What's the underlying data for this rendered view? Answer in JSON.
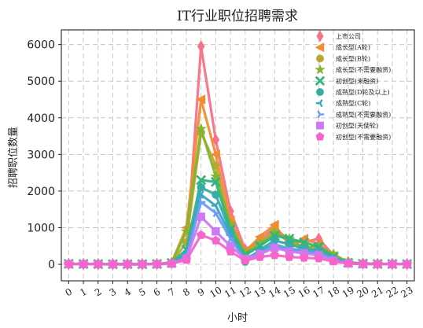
{
  "chart_data": {
    "type": "line",
    "title": "IT行业职位招聘需求",
    "xlabel": "小时",
    "ylabel": "招聘职位数量",
    "x": [
      0,
      1,
      2,
      3,
      4,
      5,
      6,
      7,
      8,
      9,
      10,
      11,
      12,
      13,
      14,
      15,
      16,
      17,
      18,
      19,
      20,
      21,
      22,
      23
    ],
    "ylim": [
      -450,
      6400
    ],
    "yticks": [
      0,
      1000,
      2000,
      3000,
      4000,
      5000,
      6000
    ],
    "grid": true,
    "legend_position": "top-right",
    "series": [
      {
        "name": "上市公司",
        "color": "#f77189",
        "marker": "diamond",
        "values": [
          10,
          8,
          5,
          3,
          3,
          3,
          8,
          40,
          250,
          5950,
          3400,
          1450,
          400,
          650,
          1000,
          650,
          600,
          700,
          250,
          60,
          20,
          10,
          10,
          5
        ]
      },
      {
        "name": "成长型(A轮)",
        "color": "#f28d32",
        "marker": "triangle-left",
        "values": [
          15,
          12,
          8,
          5,
          4,
          4,
          10,
          50,
          1000,
          4500,
          3000,
          1200,
          350,
          750,
          1080,
          520,
          700,
          550,
          230,
          50,
          20,
          15,
          10,
          8
        ]
      },
      {
        "name": "成长型(B轮)",
        "color": "#bba832",
        "marker": "circle",
        "values": [
          12,
          8,
          6,
          4,
          3,
          3,
          8,
          30,
          600,
          3600,
          2700,
          1000,
          320,
          600,
          900,
          600,
          450,
          400,
          200,
          40,
          18,
          12,
          8,
          6
        ]
      },
      {
        "name": "成长型(不需要融资)",
        "color": "#85b431",
        "marker": "star",
        "values": [
          10,
          8,
          5,
          3,
          3,
          3,
          7,
          30,
          900,
          3700,
          2400,
          1100,
          300,
          550,
          850,
          700,
          450,
          500,
          280,
          50,
          18,
          12,
          8,
          6
        ]
      },
      {
        "name": "初创型(未融资)",
        "color": "#33b57d",
        "marker": "x",
        "values": [
          12,
          10,
          6,
          4,
          3,
          3,
          8,
          35,
          400,
          2300,
          2250,
          950,
          250,
          500,
          780,
          700,
          600,
          480,
          200,
          40,
          15,
          10,
          8,
          6
        ]
      },
      {
        "name": "成熟型(D轮及以上)",
        "color": "#36ada4",
        "marker": "circle",
        "values": [
          10,
          6,
          4,
          2,
          2,
          2,
          6,
          25,
          300,
          2100,
          1900,
          900,
          70,
          400,
          650,
          550,
          420,
          380,
          160,
          35,
          12,
          8,
          6,
          4
        ]
      },
      {
        "name": "成熟型(C轮)",
        "color": "#38a9c5",
        "marker": "tri-left",
        "values": [
          10,
          6,
          4,
          2,
          2,
          2,
          6,
          25,
          250,
          1900,
          1600,
          800,
          150,
          350,
          550,
          420,
          380,
          320,
          150,
          30,
          10,
          8,
          6,
          4
        ]
      },
      {
        "name": "成熟型(不需要融资)",
        "color": "#6e9bf4",
        "marker": "tri-right",
        "values": [
          8,
          5,
          3,
          2,
          2,
          2,
          5,
          20,
          200,
          1700,
          1400,
          700,
          120,
          300,
          500,
          380,
          330,
          300,
          140,
          28,
          10,
          6,
          5,
          3
        ]
      },
      {
        "name": "初创型(天使轮)",
        "color": "#cc79f4",
        "marker": "square",
        "values": [
          8,
          5,
          3,
          2,
          2,
          2,
          5,
          20,
          150,
          1300,
          900,
          500,
          150,
          280,
          450,
          350,
          300,
          250,
          100,
          25,
          8,
          5,
          4,
          3
        ]
      },
      {
        "name": "初创型(不需要融资)",
        "color": "#f565cc",
        "marker": "pentagon",
        "values": [
          6,
          4,
          3,
          2,
          2,
          2,
          4,
          15,
          120,
          800,
          650,
          350,
          100,
          200,
          250,
          200,
          180,
          160,
          80,
          20,
          6,
          4,
          3,
          2
        ]
      }
    ]
  }
}
